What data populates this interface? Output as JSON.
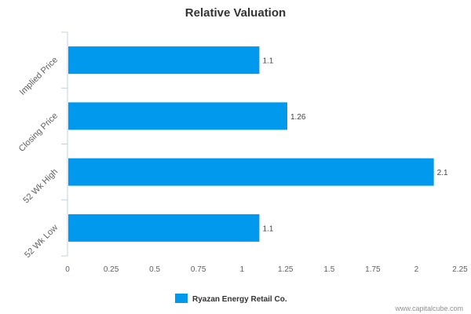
{
  "chart_data": {
    "type": "bar",
    "orientation": "horizontal",
    "title": "Relative Valuation",
    "categories": [
      "Implied Price",
      "Closing Price",
      "52 Wk High",
      "52 Wk Low"
    ],
    "series": [
      {
        "name": "Ryazan Energy Retail Co.",
        "values": [
          1.1,
          1.26,
          2.1,
          1.1
        ],
        "color": "#0099ee"
      }
    ],
    "data_labels": [
      "1.1",
      "1.26",
      "2.1",
      "1.1"
    ],
    "xlim": [
      0,
      2.25
    ],
    "x_ticks": [
      0,
      0.25,
      0.5,
      0.75,
      1,
      1.25,
      1.5,
      1.75,
      2,
      2.25
    ],
    "x_tick_labels": [
      "0",
      "0.25",
      "0.5",
      "0.75",
      "1",
      "1.25",
      "1.5",
      "1.75",
      "2",
      "2.25"
    ],
    "grid": false,
    "legend_position": "bottom-center"
  },
  "credit": "www.capitalcube.com"
}
